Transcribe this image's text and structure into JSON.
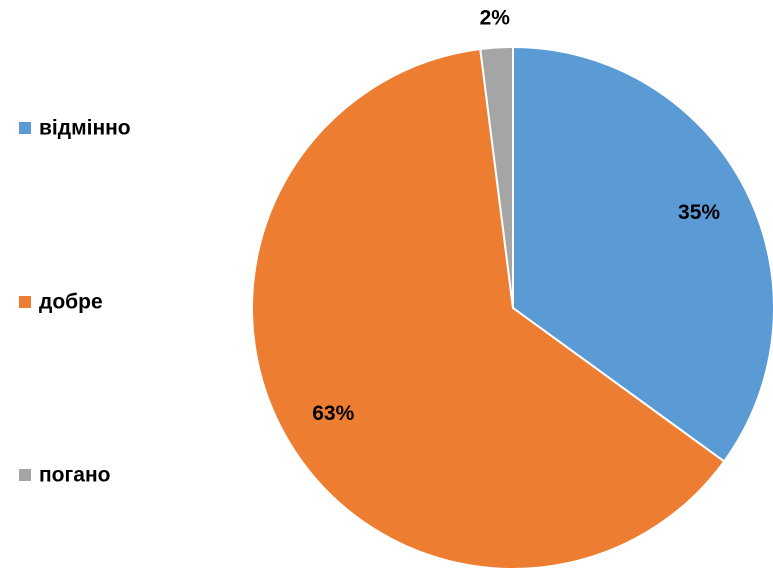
{
  "chart_data": {
    "type": "pie",
    "categories": [
      "відмінно",
      "добре",
      "погано"
    ],
    "values": [
      35,
      63,
      2
    ],
    "value_labels": [
      "35%",
      "63%",
      "2%"
    ],
    "colors": [
      "#5b9bd5",
      "#ed7d31",
      "#a5a5a5"
    ],
    "legend": "left"
  }
}
